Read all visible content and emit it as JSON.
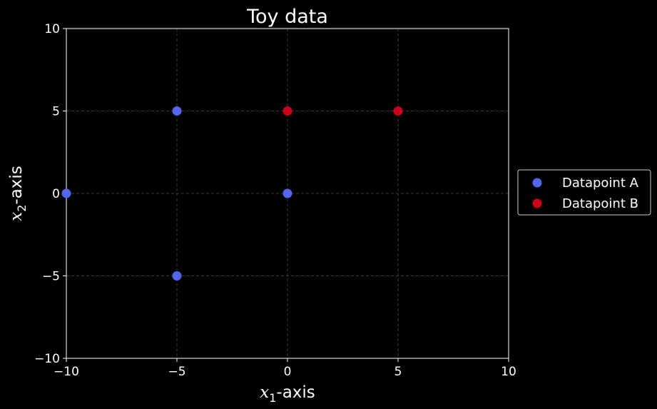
{
  "chart_data": {
    "type": "scatter",
    "title": "Toy data",
    "xlabel": {
      "math": "x",
      "sub": "1",
      "rest": "-axis"
    },
    "ylabel": {
      "math": "x",
      "sub": "2",
      "rest": "-axis"
    },
    "xlim": [
      -10,
      10
    ],
    "ylim": [
      -10,
      10
    ],
    "xticks": [
      -10,
      -5,
      0,
      5,
      10
    ],
    "yticks": [
      -10,
      -5,
      0,
      5,
      10
    ],
    "xtick_labels": [
      "−10",
      "−5",
      "0",
      "5",
      "10"
    ],
    "ytick_labels": [
      "−10",
      "−5",
      "0",
      "5",
      "10"
    ],
    "grid": true,
    "legend_position": "center-right-outside",
    "series": [
      {
        "name": "Datapoint A",
        "color": "#5566ee",
        "points": [
          [
            -10,
            0
          ],
          [
            -5,
            5
          ],
          [
            -5,
            -5
          ],
          [
            0,
            0
          ]
        ]
      },
      {
        "name": "Datapoint B",
        "color": "#cc0018",
        "points": [
          [
            0,
            5
          ],
          [
            5,
            5
          ]
        ]
      }
    ]
  }
}
